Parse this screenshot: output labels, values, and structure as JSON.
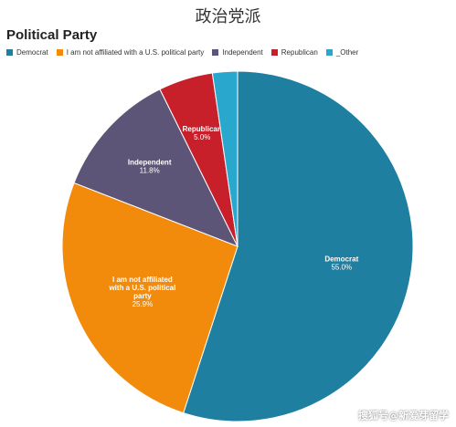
{
  "header": {
    "title": "政治党派"
  },
  "watermark": "搜狐号@新爱芽留学",
  "chart_data": {
    "type": "pie",
    "title": "Political Party",
    "legend_position": "top-left",
    "slices": [
      {
        "name": "Democrat",
        "label_lines": [
          "Democrat"
        ],
        "value": 55.0,
        "value_label": "55.0%",
        "color": "#1f7fa0"
      },
      {
        "name": "I am not affiliated with a U.S. political party",
        "label_lines": [
          "I am not affiliated",
          "with a U.S. political",
          "party"
        ],
        "value": 25.9,
        "value_label": "25.9%",
        "color": "#f28b0c"
      },
      {
        "name": "Independent",
        "label_lines": [
          "Independent"
        ],
        "value": 11.8,
        "value_label": "11.8%",
        "color": "#5d5577"
      },
      {
        "name": "Republican",
        "label_lines": [
          "Republican"
        ],
        "value": 5.0,
        "value_label": "5.0%",
        "color": "#c8202a"
      },
      {
        "name": "_Other",
        "label_lines": [],
        "value": 2.3,
        "value_label": "",
        "color": "#2aa7cc"
      }
    ]
  }
}
